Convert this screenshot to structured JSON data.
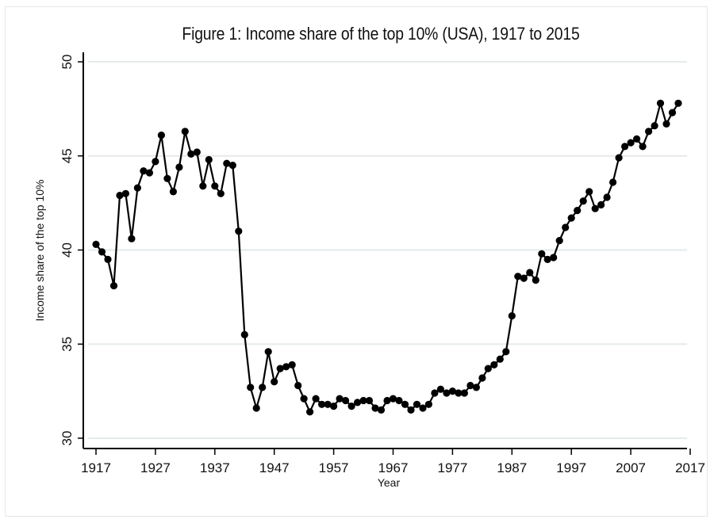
{
  "chart_data": {
    "type": "line",
    "title": "Figure 1: Income share of the top 10% (USA), 1917 to 2015",
    "xlabel": "Year",
    "ylabel": "Income share of the top 10%",
    "xlim": [
      1917,
      2017
    ],
    "ylim": [
      30,
      50
    ],
    "xticks": [
      1917,
      1927,
      1937,
      1947,
      1957,
      1967,
      1977,
      1987,
      1997,
      2007,
      2017
    ],
    "yticks": [
      30,
      35,
      40,
      45,
      50
    ],
    "grid": "horizontal",
    "legend": "none",
    "marker": "filled circle",
    "line_color": "#000000",
    "series": [
      {
        "name": "Income share of the top 10%",
        "x": [
          1917,
          1918,
          1919,
          1920,
          1921,
          1922,
          1923,
          1924,
          1925,
          1926,
          1927,
          1928,
          1929,
          1930,
          1931,
          1932,
          1933,
          1934,
          1935,
          1936,
          1937,
          1938,
          1939,
          1940,
          1941,
          1942,
          1943,
          1944,
          1945,
          1946,
          1947,
          1948,
          1949,
          1950,
          1951,
          1952,
          1953,
          1954,
          1955,
          1956,
          1957,
          1958,
          1959,
          1960,
          1961,
          1962,
          1963,
          1964,
          1965,
          1966,
          1967,
          1968,
          1969,
          1970,
          1971,
          1972,
          1973,
          1974,
          1975,
          1976,
          1977,
          1978,
          1979,
          1980,
          1981,
          1982,
          1983,
          1984,
          1985,
          1986,
          1987,
          1988,
          1989,
          1990,
          1991,
          1992,
          1993,
          1994,
          1995,
          1996,
          1997,
          1998,
          1999,
          2000,
          2001,
          2002,
          2003,
          2004,
          2005,
          2006,
          2007,
          2008,
          2009,
          2010,
          2011,
          2012,
          2013,
          2014,
          2015
        ],
        "values": [
          40.3,
          39.9,
          39.5,
          38.1,
          42.9,
          43.0,
          40.6,
          43.3,
          44.2,
          44.1,
          44.7,
          46.1,
          43.8,
          43.1,
          44.4,
          46.3,
          45.1,
          45.2,
          43.4,
          44.8,
          43.4,
          43.0,
          44.6,
          44.5,
          41.0,
          35.5,
          32.7,
          31.6,
          32.7,
          34.6,
          33.0,
          33.7,
          33.8,
          33.9,
          32.8,
          32.1,
          31.4,
          32.1,
          31.8,
          31.8,
          31.7,
          32.1,
          32.0,
          31.7,
          31.9,
          32.0,
          32.0,
          31.6,
          31.5,
          32.0,
          32.1,
          32.0,
          31.8,
          31.5,
          31.8,
          31.6,
          31.8,
          32.4,
          32.6,
          32.4,
          32.5,
          32.4,
          32.4,
          32.8,
          32.7,
          33.2,
          33.7,
          33.9,
          34.2,
          34.6,
          36.5,
          38.6,
          38.5,
          38.8,
          38.4,
          39.8,
          39.5,
          39.6,
          40.5,
          41.2,
          41.7,
          42.1,
          42.6,
          43.1,
          42.2,
          42.4,
          42.8,
          43.6,
          44.9,
          45.5,
          45.7,
          45.9,
          45.5,
          46.3,
          46.6,
          47.8,
          46.7,
          47.3,
          47.8
        ]
      }
    ]
  },
  "figure": {
    "title": "Figure 1: Income share of the top 10% (USA), 1917 to 2015",
    "x_axis_title": "Year",
    "y_axis_title": "Income share of the top 10%",
    "x_tick_labels": [
      "1917",
      "1927",
      "1937",
      "1947",
      "1957",
      "1967",
      "1977",
      "1987",
      "1997",
      "2007",
      "2017"
    ],
    "y_tick_labels": [
      "30",
      "35",
      "40",
      "45",
      "50"
    ]
  }
}
